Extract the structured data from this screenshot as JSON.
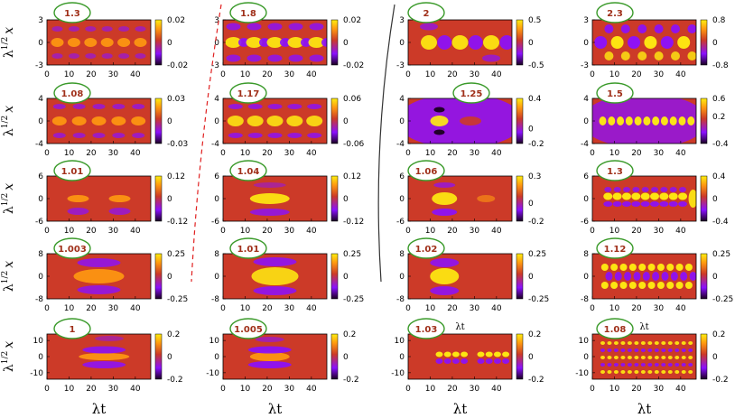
{
  "figure": {
    "y_axis_label": "λ",
    "y_axis_label_sup": "1/2",
    "y_axis_label_var": "x",
    "x_axis_label": "λt",
    "inner_x_label": "λt",
    "colors": {
      "high": "#ffee10",
      "mid_high": "#ff9a10",
      "zero": "#cc3a28",
      "mid_low": "#8a10ff",
      "low": "#1a0020",
      "badge_border": "#3a9a2a",
      "badge_text": "#a0301a",
      "dashed_divider": "#e02020",
      "solid_divider": "#333333"
    }
  },
  "chart_data": [
    {
      "type": "heatmap",
      "label": "1.3",
      "x_ticks": [
        "0",
        "10",
        "20",
        "30",
        "40"
      ],
      "y_ticks": [
        "3",
        "0",
        "-3"
      ],
      "cb_ticks": [
        "0.02",
        "0",
        "-0.02"
      ],
      "ylim": [
        -3,
        3
      ],
      "xlim": [
        0,
        47
      ],
      "cblim": [
        -0.02,
        0.02
      ]
    },
    {
      "type": "heatmap",
      "label": "1.8",
      "x_ticks": [
        "0",
        "10",
        "20",
        "30",
        "40"
      ],
      "y_ticks": [
        "3",
        "0",
        "-3"
      ],
      "cb_ticks": [
        "0.02",
        "0",
        "-0.02"
      ],
      "ylim": [
        -3,
        3
      ],
      "xlim": [
        0,
        47
      ],
      "cblim": [
        -0.02,
        0.02
      ]
    },
    {
      "type": "heatmap",
      "label": "2",
      "x_ticks": [
        "0",
        "10",
        "20",
        "30",
        "40"
      ],
      "y_ticks": [
        "3",
        "0",
        "-3"
      ],
      "cb_ticks": [
        "0.5",
        "0",
        "-0.5"
      ],
      "ylim": [
        -3,
        3
      ],
      "xlim": [
        0,
        47
      ],
      "cblim": [
        -0.5,
        0.5
      ]
    },
    {
      "type": "heatmap",
      "label": "2.3",
      "x_ticks": [
        "0",
        "10",
        "20",
        "30",
        "40"
      ],
      "y_ticks": [
        "3",
        "0",
        "-3"
      ],
      "cb_ticks": [
        "0.8",
        "0",
        "-0.8"
      ],
      "ylim": [
        -3,
        3
      ],
      "xlim": [
        0,
        47
      ],
      "cblim": [
        -0.8,
        0.8
      ]
    },
    {
      "type": "heatmap",
      "label": "1.08",
      "x_ticks": [
        "0",
        "10",
        "20",
        "30",
        "40"
      ],
      "y_ticks": [
        "4",
        "0",
        "-4"
      ],
      "cb_ticks": [
        "0.03",
        "0",
        "-0.03"
      ],
      "ylim": [
        -4,
        4
      ],
      "xlim": [
        0,
        47
      ],
      "cblim": [
        -0.03,
        0.03
      ]
    },
    {
      "type": "heatmap",
      "label": "1.17",
      "x_ticks": [
        "0",
        "10",
        "20",
        "30",
        "40"
      ],
      "y_ticks": [
        "4",
        "0",
        "-4"
      ],
      "cb_ticks": [
        "0.06",
        "0",
        "-0.06"
      ],
      "ylim": [
        -4,
        4
      ],
      "xlim": [
        0,
        47
      ],
      "cblim": [
        -0.06,
        0.06
      ]
    },
    {
      "type": "heatmap",
      "label": "1.25",
      "x_ticks": [
        "0",
        "10",
        "20",
        "30",
        "40"
      ],
      "y_ticks": [
        "4",
        "0",
        "-4"
      ],
      "cb_ticks": [
        "0.4",
        "0",
        "-0.2"
      ],
      "ylim": [
        -4,
        4
      ],
      "xlim": [
        0,
        47
      ],
      "cblim": [
        -0.2,
        0.4
      ]
    },
    {
      "type": "heatmap",
      "label": "1.5",
      "x_ticks": [
        "0",
        "10",
        "20",
        "30",
        "40"
      ],
      "y_ticks": [
        "4",
        "0",
        "-4"
      ],
      "cb_ticks": [
        "0.6",
        "0.2",
        "-0.4"
      ],
      "ylim": [
        -4,
        4
      ],
      "xlim": [
        0,
        47
      ],
      "cblim": [
        -0.4,
        0.6
      ]
    },
    {
      "type": "heatmap",
      "label": "1.01",
      "x_ticks": [
        "0",
        "10",
        "20",
        "30",
        "40"
      ],
      "y_ticks": [
        "6",
        "0",
        "-6"
      ],
      "cb_ticks": [
        "0.12",
        "0",
        "-0.12"
      ],
      "ylim": [
        -6,
        6
      ],
      "xlim": [
        0,
        47
      ],
      "cblim": [
        -0.12,
        0.12
      ]
    },
    {
      "type": "heatmap",
      "label": "1.04",
      "x_ticks": [
        "0",
        "10",
        "20",
        "30",
        "40"
      ],
      "y_ticks": [
        "6",
        "0",
        "-6"
      ],
      "cb_ticks": [
        "0.12",
        "0",
        "-0.12"
      ],
      "ylim": [
        -6,
        6
      ],
      "xlim": [
        0,
        47
      ],
      "cblim": [
        -0.12,
        0.12
      ]
    },
    {
      "type": "heatmap",
      "label": "1.06",
      "x_ticks": [
        "0",
        "10",
        "20",
        "30",
        "40"
      ],
      "y_ticks": [
        "6",
        "0",
        "-6"
      ],
      "cb_ticks": [
        "0.3",
        "0",
        "-0.2"
      ],
      "ylim": [
        -6,
        6
      ],
      "xlim": [
        0,
        47
      ],
      "cblim": [
        -0.2,
        0.3
      ]
    },
    {
      "type": "heatmap",
      "label": "1.3",
      "x_ticks": [
        "0",
        "10",
        "20",
        "30",
        "40"
      ],
      "y_ticks": [
        "6",
        "0",
        "-6"
      ],
      "cb_ticks": [
        "0.4",
        "0",
        "-0.4"
      ],
      "ylim": [
        -6,
        6
      ],
      "xlim": [
        0,
        47
      ],
      "cblim": [
        -0.4,
        0.4
      ]
    },
    {
      "type": "heatmap",
      "label": "1.003",
      "x_ticks": [
        "0",
        "10",
        "20",
        "30",
        "40"
      ],
      "y_ticks": [
        "8",
        "0",
        "-8"
      ],
      "cb_ticks": [
        "0.25",
        "0",
        "-0.25"
      ],
      "ylim": [
        -8,
        8
      ],
      "xlim": [
        0,
        47
      ],
      "cblim": [
        -0.25,
        0.25
      ]
    },
    {
      "type": "heatmap",
      "label": "1.01",
      "x_ticks": [
        "0",
        "10",
        "20",
        "30",
        "40"
      ],
      "y_ticks": [
        "8",
        "0",
        "-8"
      ],
      "cb_ticks": [
        "0.25",
        "0",
        "-0.25"
      ],
      "ylim": [
        -8,
        8
      ],
      "xlim": [
        0,
        47
      ],
      "cblim": [
        -0.25,
        0.25
      ]
    },
    {
      "type": "heatmap",
      "label": "1.02",
      "x_ticks": [
        "0",
        "10",
        "20",
        "30",
        "40"
      ],
      "y_ticks": [
        "8",
        "0",
        "-8"
      ],
      "cb_ticks": [
        "0.25",
        "0",
        "-0.25"
      ],
      "ylim": [
        -8,
        8
      ],
      "xlim": [
        0,
        47
      ],
      "cblim": [
        -0.25,
        0.25
      ]
    },
    {
      "type": "heatmap",
      "label": "1.12",
      "x_ticks": [
        "0",
        "10",
        "20",
        "30",
        "40"
      ],
      "y_ticks": [
        "8",
        "0",
        "-8"
      ],
      "cb_ticks": [
        "0.25",
        "0",
        "-0.25"
      ],
      "ylim": [
        -8,
        8
      ],
      "xlim": [
        0,
        47
      ],
      "cblim": [
        -0.25,
        0.25
      ]
    },
    {
      "type": "heatmap",
      "label": "1",
      "x_ticks": [
        "0",
        "10",
        "20",
        "30",
        "40"
      ],
      "y_ticks": [
        "10",
        "0",
        "-10"
      ],
      "cb_ticks": [
        "0.2",
        "0",
        "-0.2"
      ],
      "ylim": [
        -14,
        14
      ],
      "xlim": [
        0,
        47
      ],
      "cblim": [
        -0.2,
        0.2
      ]
    },
    {
      "type": "heatmap",
      "label": "1.005",
      "x_ticks": [
        "0",
        "10",
        "20",
        "30",
        "40"
      ],
      "y_ticks": [
        "10",
        "0",
        "-10"
      ],
      "cb_ticks": [
        "0.2",
        "0",
        "-0.2"
      ],
      "ylim": [
        -14,
        14
      ],
      "xlim": [
        0,
        47
      ],
      "cblim": [
        -0.2,
        0.2
      ]
    },
    {
      "type": "heatmap",
      "label": "1.03",
      "x_ticks": [
        "0",
        "10",
        "20",
        "30",
        "40"
      ],
      "y_ticks": [
        "10",
        "0",
        "-10"
      ],
      "cb_ticks": [
        "0.2",
        "0",
        "-0.2"
      ],
      "ylim": [
        -14,
        14
      ],
      "xlim": [
        0,
        47
      ],
      "cblim": [
        -0.2,
        0.2
      ]
    },
    {
      "type": "heatmap",
      "label": "1.08",
      "x_ticks": [
        "0",
        "10",
        "20",
        "30",
        "40"
      ],
      "y_ticks": [
        "10",
        "0",
        "-10"
      ],
      "cb_ticks": [
        "0.2",
        "0",
        "-0.2"
      ],
      "ylim": [
        -14,
        14
      ],
      "xlim": [
        0,
        47
      ],
      "cblim": [
        -0.2,
        0.2
      ]
    }
  ]
}
